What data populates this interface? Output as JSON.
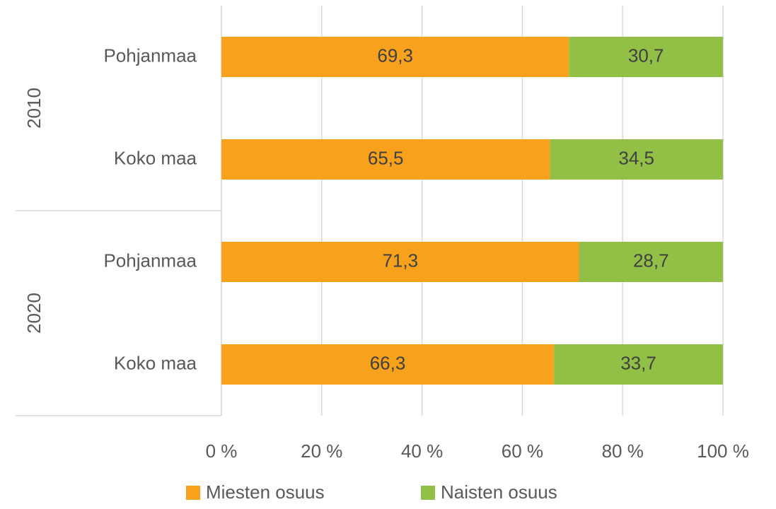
{
  "chart_data": {
    "type": "stacked_bar_horizontal",
    "groups": [
      "2010",
      "2020"
    ],
    "categories": [
      "Pohjanmaa",
      "Koko maa",
      "Pohjanmaa",
      "Koko maa"
    ],
    "series": [
      {
        "name": "Miesten osuus",
        "color": "#f7a11d",
        "values": [
          69.3,
          65.5,
          71.3,
          66.3
        ],
        "value_labels": [
          "69,3",
          "65,5",
          "71,3",
          "66,3"
        ]
      },
      {
        "name": "Naisten osuus",
        "color": "#92c047",
        "values": [
          30.7,
          34.5,
          28.7,
          33.7
        ],
        "value_labels": [
          "30,7",
          "34,5",
          "28,7",
          "33,7"
        ]
      }
    ],
    "xlim": [
      0,
      100
    ],
    "xticks": [
      {
        "value": 0,
        "label": "0 %"
      },
      {
        "value": 20,
        "label": "20 %"
      },
      {
        "value": 40,
        "label": "40 %"
      },
      {
        "value": 60,
        "label": "60 %"
      },
      {
        "value": 80,
        "label": "80 %"
      },
      {
        "value": 100,
        "label": "100 %"
      }
    ],
    "grid": true,
    "legend": "bottom"
  }
}
